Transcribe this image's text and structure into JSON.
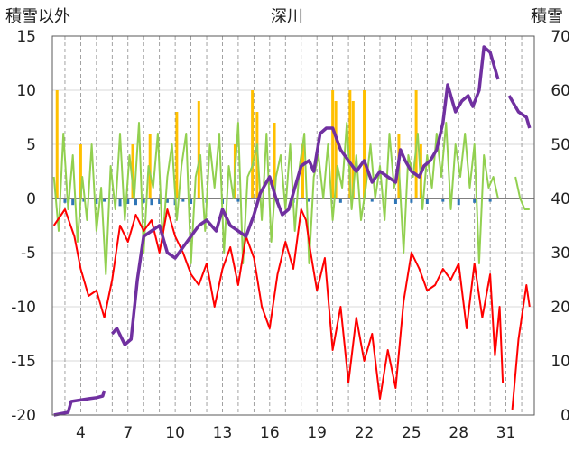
{
  "chart_data": {
    "type": "line",
    "title": "深川",
    "ylabel_left": "積雪以外",
    "ylabel_right": "積雪",
    "left_axis": {
      "min": -20,
      "max": 15,
      "ticks": [
        15,
        10,
        5,
        0,
        -5,
        -10,
        -15,
        -20
      ],
      "tick_labels": [
        "15",
        "10",
        "5",
        "0",
        "-5",
        "-10",
        "-15",
        "-20"
      ]
    },
    "right_axis": {
      "min": 0,
      "max": 70,
      "ticks": [
        70,
        60,
        50,
        40,
        30,
        20,
        10,
        0
      ],
      "tick_labels": [
        "70",
        "60",
        "50",
        "40",
        "30",
        "20",
        "10",
        "0"
      ]
    },
    "x_axis": {
      "min": 2.2,
      "max": 32.8,
      "ticks": [
        4,
        7,
        10,
        13,
        16,
        19,
        22,
        25,
        28,
        31
      ],
      "tick_labels": [
        "4",
        "7",
        "10",
        "13",
        "16",
        "19",
        "22",
        "25",
        "28",
        "31"
      ],
      "minor_grid": [
        3,
        4,
        5,
        6,
        7,
        8,
        9,
        10,
        11,
        12,
        13,
        14,
        15,
        16,
        17,
        18,
        19,
        20,
        21,
        22,
        23,
        24,
        25,
        26,
        27,
        28,
        29,
        30,
        31,
        32
      ]
    },
    "grid": true,
    "colors": {
      "precip": "#ffc000",
      "sunshine": "#92d050",
      "temperature": "#ff0000",
      "snow_depth": "#7030a0",
      "wind": "#2e75b6",
      "zero_line": "#7f7f7f"
    },
    "series": [
      {
        "key": "snow_depth",
        "axis": "right",
        "x": [
          2.3,
          3.2,
          3.4,
          4.5,
          5.0,
          5.4,
          5.5,
          6.0,
          6.3,
          6.8,
          7.2,
          7.6,
          8.0,
          8.5,
          9.0,
          9.5,
          10.0,
          10.5,
          11.0,
          11.5,
          12.0,
          12.6,
          13.0,
          13.5,
          14.0,
          14.5,
          15.0,
          15.4,
          15.8,
          16.0,
          16.4,
          16.8,
          17.2,
          17.6,
          18.0,
          18.5,
          18.8,
          19.2,
          19.6,
          20.0,
          20.5,
          21.0,
          21.5,
          22.0,
          22.5,
          23.0,
          23.5,
          24.0,
          24.3,
          24.6,
          25.0,
          25.5,
          25.8,
          26.2,
          26.6,
          27.0,
          27.3,
          27.8,
          28.2,
          28.6,
          28.9,
          29.3,
          29.6,
          30.0,
          30.5,
          31.2,
          31.8,
          32.3,
          32.5
        ],
        "y": [
          0,
          0.5,
          2.5,
          3.0,
          3.2,
          3.5,
          4.5,
          15,
          16,
          13,
          14,
          25,
          33,
          34,
          35,
          30,
          29,
          31,
          33,
          35,
          36,
          34,
          38,
          35,
          34,
          33,
          37,
          41,
          43,
          44,
          40,
          37,
          38,
          42,
          46,
          47,
          45,
          52,
          53,
          53,
          49,
          47,
          45,
          47,
          43,
          45,
          44,
          43,
          49,
          47,
          45,
          44,
          46,
          47,
          49,
          54,
          61,
          56,
          58,
          59,
          57,
          60,
          68,
          67,
          62,
          59,
          56,
          55,
          53
        ]
      },
      {
        "key": "temperature",
        "axis": "left",
        "x": [
          2.3,
          3.0,
          3.6,
          4.0,
          4.5,
          5.0,
          5.5,
          6.0,
          6.5,
          7.0,
          7.5,
          8.0,
          8.5,
          9.0,
          9.5,
          10.0,
          10.5,
          11.0,
          11.5,
          12.0,
          12.5,
          13.0,
          13.5,
          14.0,
          14.5,
          15.0,
          15.5,
          16.0,
          16.5,
          17.0,
          17.5,
          18.0,
          18.3,
          18.6,
          19.0,
          19.5,
          20.0,
          20.5,
          21.0,
          21.5,
          22.0,
          22.5,
          23.0,
          23.5,
          24.0,
          24.5,
          25.0,
          25.5,
          26.0,
          26.5,
          27.0,
          27.5,
          28.0,
          28.5,
          29.0,
          29.5,
          30.0,
          30.3,
          30.6,
          30.8,
          31.4,
          31.8,
          32.3,
          32.5
        ],
        "y": [
          -2.5,
          -1.0,
          -3.5,
          -6.5,
          -9.0,
          -8.5,
          -11.0,
          -7.5,
          -2.5,
          -4.0,
          -1.5,
          -3.0,
          -2.0,
          -5.0,
          -1.0,
          -3.5,
          -5.0,
          -7.0,
          -8.0,
          -6.0,
          -10.0,
          -6.5,
          -4.5,
          -8.0,
          -3.5,
          -5.5,
          -10.0,
          -12.0,
          -7.0,
          -4.0,
          -6.5,
          -1.0,
          -2.0,
          -5.0,
          -8.5,
          -5.5,
          -14.0,
          -10.0,
          -17.0,
          -11.0,
          -15.0,
          -12.5,
          -18.5,
          -14.0,
          -17.5,
          -9.5,
          -5.0,
          -6.5,
          -8.5,
          -8.0,
          -6.5,
          -7.5,
          -6.0,
          -12.0,
          -6.0,
          -11.0,
          -7.0,
          -14.5,
          -10.0,
          -17.0,
          -19.5,
          -13.0,
          -8.0,
          -10.0
        ]
      },
      {
        "key": "sunshine",
        "axis": "left",
        "x": [
          2.3,
          2.6,
          2.9,
          3.2,
          3.5,
          3.8,
          4.1,
          4.4,
          4.7,
          5.0,
          5.3,
          5.6,
          5.9,
          6.2,
          6.5,
          6.8,
          7.1,
          7.4,
          7.7,
          8.0,
          8.3,
          8.6,
          8.9,
          9.2,
          9.5,
          9.8,
          10.1,
          10.4,
          10.7,
          11.0,
          11.3,
          11.6,
          11.9,
          12.2,
          12.5,
          12.8,
          13.1,
          13.4,
          13.7,
          14.0,
          14.3,
          14.6,
          14.9,
          15.2,
          15.5,
          15.8,
          16.1,
          16.4,
          16.7,
          17.0,
          17.3,
          17.6,
          17.9,
          18.2,
          18.5,
          18.8,
          19.1,
          19.4,
          19.7,
          20.0,
          20.3,
          20.6,
          20.9,
          21.2,
          21.5,
          21.8,
          22.1,
          22.4,
          22.7,
          23.0,
          23.3,
          23.6,
          23.9,
          24.2,
          24.5,
          24.8,
          25.1,
          25.4,
          25.7,
          26.0,
          26.3,
          26.6,
          26.9,
          27.2,
          27.5,
          27.8,
          28.1,
          28.4,
          28.7,
          29.0,
          29.3,
          29.6,
          29.9,
          30.2,
          30.5,
          31.6,
          31.9,
          32.2,
          32.5
        ],
        "y": [
          2,
          -3,
          6,
          -1,
          4,
          -4,
          2,
          -2,
          5,
          -3,
          1,
          -7,
          3,
          -1,
          6,
          -2,
          4,
          0,
          7,
          -5,
          3,
          1,
          6,
          -4,
          2,
          5,
          -2,
          3,
          6,
          -6,
          2,
          4,
          -3,
          5,
          1,
          6,
          -5,
          3,
          0,
          7,
          -6,
          2,
          3,
          5,
          -2,
          6,
          -4,
          2,
          4,
          -1,
          5,
          -3,
          3,
          6,
          -6,
          2,
          4,
          0,
          5,
          -2,
          3,
          1,
          7,
          -1,
          4,
          -2,
          1,
          5,
          0,
          3,
          -2,
          6,
          1,
          3,
          -5,
          4,
          2,
          6,
          -1,
          4,
          1,
          6,
          2,
          7,
          -1,
          5,
          2,
          6,
          1,
          5,
          -6,
          4,
          1,
          2,
          0,
          2,
          0,
          -1,
          -1
        ]
      },
      {
        "key": "precip",
        "axis": "left",
        "type": "bar",
        "x": [
          2.5,
          4.0,
          7.3,
          8.4,
          10.1,
          11.5,
          13.8,
          14.9,
          15.2,
          16.3,
          18.1,
          20.0,
          20.2,
          21.1,
          21.3,
          22.0,
          24.2,
          25.3,
          25.6
        ],
        "y": [
          10,
          5,
          5,
          6,
          8,
          9,
          5,
          10,
          8,
          7,
          5,
          10,
          9,
          10,
          9,
          10,
          6,
          10,
          5
        ]
      },
      {
        "key": "wind",
        "axis": "left",
        "type": "bar",
        "x": [
          3.0,
          3.5,
          4.2,
          5.0,
          5.5,
          6.5,
          7.0,
          7.5,
          8.0,
          8.5,
          9.0,
          9.5,
          10.0,
          10.5,
          11.0,
          12.0,
          13.0,
          14.0,
          16.5,
          17.5,
          18.5,
          20.5,
          22.5,
          24.0,
          25.0,
          26.0,
          27.0,
          28.0,
          29.0,
          30.0
        ],
        "y": [
          -0.4,
          -0.6,
          -0.3,
          -0.5,
          -0.3,
          -0.7,
          -0.5,
          -0.6,
          -0.4,
          -0.6,
          -0.5,
          -0.4,
          -0.6,
          -0.3,
          -0.5,
          -0.4,
          -0.5,
          -0.3,
          -0.5,
          -0.4,
          -0.3,
          -0.4,
          -0.3,
          -0.5,
          -0.4,
          -0.5,
          -0.3,
          -0.6,
          -0.4,
          -0.3
        ]
      }
    ]
  }
}
